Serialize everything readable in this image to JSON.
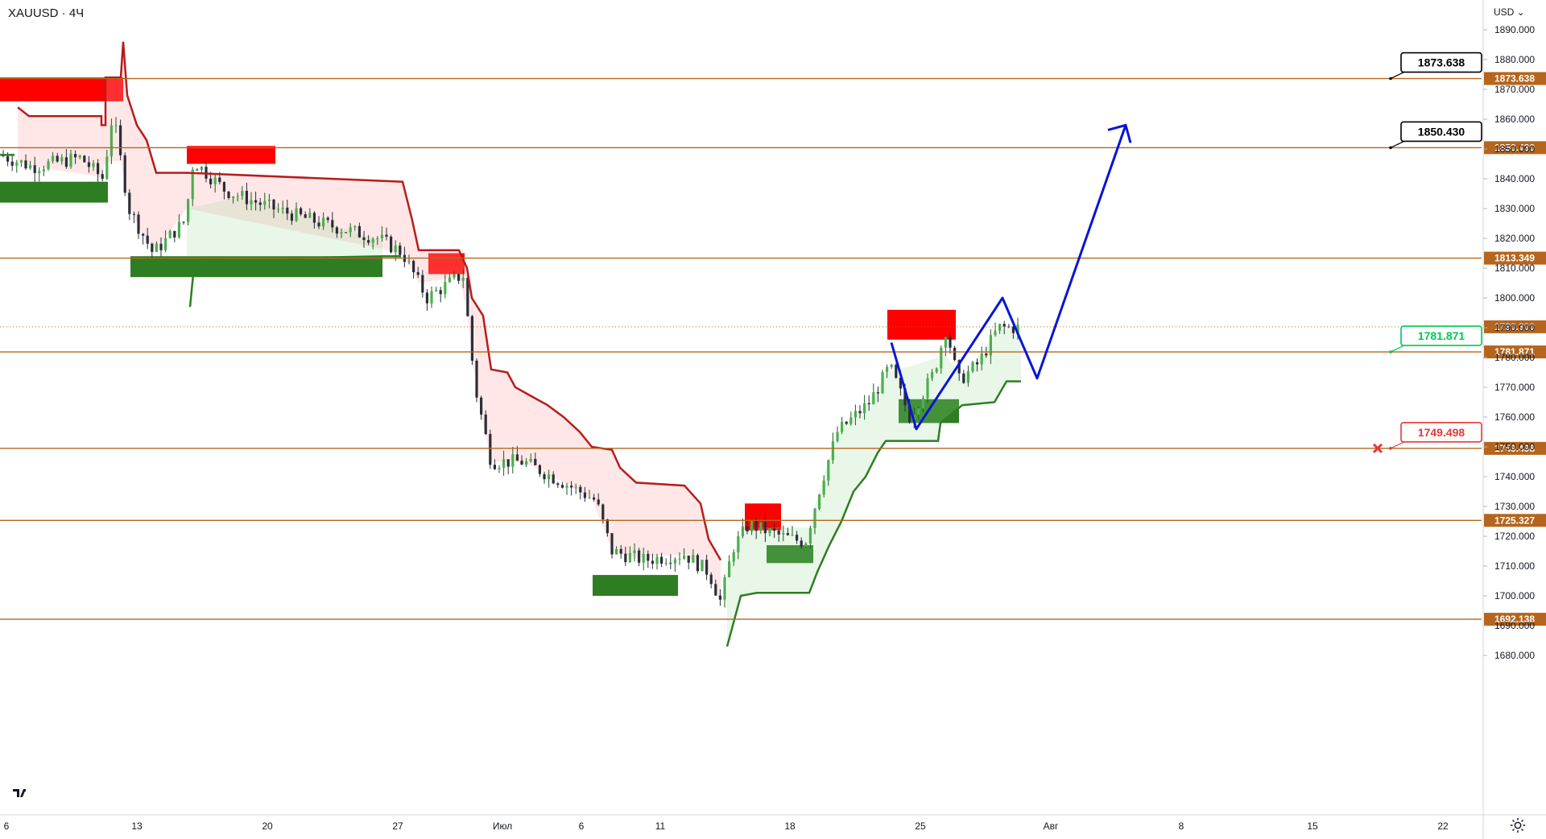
{
  "header": {
    "symbol": "XAUUSD · 4Ч",
    "currency": "USD"
  },
  "chart_data": {
    "type": "candlestick",
    "ylim": [
      1680,
      1890
    ],
    "y_ticks": [
      1680,
      1690,
      1700,
      1710,
      1720,
      1730,
      1740,
      1750,
      1760,
      1770,
      1780,
      1790,
      1800,
      1810,
      1820,
      1830,
      1840,
      1850,
      1860,
      1870,
      1880,
      1890
    ],
    "y_tick_format": "000",
    "x_tick_labels": [
      "6",
      "13",
      "20",
      "27",
      "Июл",
      "6",
      "11",
      "18",
      "25",
      "Авг",
      "8",
      "15",
      "22"
    ],
    "levels": [
      {
        "value": 1873.638,
        "label": "1873.638",
        "style": "orange"
      },
      {
        "value": 1850.43,
        "label": "1850.430",
        "style": "orange"
      },
      {
        "value": 1813.349,
        "label": "1813.349",
        "style": "orange"
      },
      {
        "value": 1781.871,
        "label": "1781.871",
        "style": "orange"
      },
      {
        "value": 1749.498,
        "label": "1749.498",
        "style": "orange"
      },
      {
        "value": 1725.327,
        "label": "1725.327",
        "style": "orange"
      },
      {
        "value": 1692.138,
        "label": "1692.138",
        "style": "orange"
      }
    ],
    "current_price": {
      "value": 1790.3,
      "label": "1790.300"
    },
    "callouts": [
      {
        "label": "1873.638",
        "color": "#000000",
        "value": 1873.638
      },
      {
        "label": "1850.430",
        "color": "#000000",
        "value": 1850.43
      },
      {
        "label": "1781.871",
        "color": "#00c853",
        "value": 1781.871
      },
      {
        "label": "1749.498",
        "color": "#e53935",
        "value": 1749.498
      }
    ],
    "supply_zones": [
      {
        "x": [
          0,
          153
        ],
        "y": [
          1866,
          1874
        ]
      },
      {
        "x": [
          232,
          342
        ],
        "y": [
          1845,
          1851
        ]
      },
      {
        "x": [
          532,
          577
        ],
        "y": [
          1808,
          1815
        ]
      },
      {
        "x": [
          1102,
          1187
        ],
        "y": [
          1786,
          1796
        ]
      },
      {
        "x": [
          925,
          970
        ],
        "y": [
          1722,
          1731
        ]
      }
    ],
    "demand_zones": [
      {
        "x": [
          0,
          134
        ],
        "y": [
          1832,
          1839
        ]
      },
      {
        "x": [
          162,
          475
        ],
        "y": [
          1807,
          1814
        ]
      },
      {
        "x": [
          1116,
          1191
        ],
        "y": [
          1758,
          1766
        ]
      },
      {
        "x": [
          952,
          1010
        ],
        "y": [
          1711,
          1717
        ]
      },
      {
        "x": [
          736,
          842
        ],
        "y": [
          1700,
          1707
        ]
      }
    ],
    "projection": {
      "color": "#0a14d8",
      "points": [
        [
          1107,
          1785
        ],
        [
          1138,
          1756
        ],
        [
          1245,
          1800
        ],
        [
          1288,
          1773
        ],
        [
          1398,
          1858
        ]
      ]
    },
    "red_trail": [
      [
        0,
        1848
      ],
      [
        22,
        1864
      ],
      [
        36,
        1861
      ],
      [
        126,
        1861
      ],
      [
        126,
        1858
      ],
      [
        131,
        1858
      ],
      [
        131,
        1874
      ],
      [
        150,
        1874
      ],
      [
        153,
        1886
      ],
      [
        158,
        1868
      ],
      [
        170,
        1858
      ],
      [
        182,
        1853
      ],
      [
        194,
        1842
      ],
      [
        232,
        1842
      ],
      [
        232,
        1842
      ],
      [
        500,
        1839
      ],
      [
        512,
        1826
      ],
      [
        520,
        1816
      ],
      [
        570,
        1816
      ],
      [
        580,
        1810
      ],
      [
        586,
        1800
      ],
      [
        600,
        1794
      ],
      [
        610,
        1776
      ],
      [
        630,
        1775
      ],
      [
        640,
        1770
      ],
      [
        660,
        1767
      ],
      [
        680,
        1764
      ],
      [
        700,
        1760
      ],
      [
        720,
        1755
      ],
      [
        735,
        1750
      ],
      [
        760,
        1749
      ],
      [
        770,
        1743
      ],
      [
        790,
        1738
      ],
      [
        850,
        1737
      ],
      [
        870,
        1731
      ],
      [
        880,
        1719
      ],
      [
        895,
        1712
      ]
    ],
    "green_trail": [
      [
        0,
        1848
      ],
      [
        18,
        1848
      ],
      [
        18,
        1850
      ],
      [
        126,
        1850
      ],
      [
        131,
        1844
      ],
      [
        150,
        1844
      ],
      [
        153,
        1850
      ],
      [
        162,
        1850
      ],
      [
        162,
        1814
      ],
      [
        237,
        1814
      ],
      [
        237,
        1798
      ],
      [
        255,
        1812
      ],
      [
        300,
        1813
      ],
      [
        475,
        1814
      ],
      [
        498,
        1814
      ]
    ],
    "green_trail_2": [
      [
        903,
        1683
      ],
      [
        920,
        1700
      ],
      [
        940,
        1701
      ],
      [
        1005,
        1701
      ],
      [
        1015,
        1708
      ],
      [
        1030,
        1717
      ],
      [
        1045,
        1725
      ],
      [
        1060,
        1735
      ],
      [
        1075,
        1740
      ],
      [
        1090,
        1748
      ],
      [
        1100,
        1752
      ],
      [
        1165,
        1752
      ],
      [
        1168,
        1758
      ],
      [
        1195,
        1764
      ],
      [
        1235,
        1765
      ],
      [
        1250,
        1772
      ],
      [
        1268,
        1772
      ]
    ],
    "candles_note": "synthetic OHLC"
  }
}
